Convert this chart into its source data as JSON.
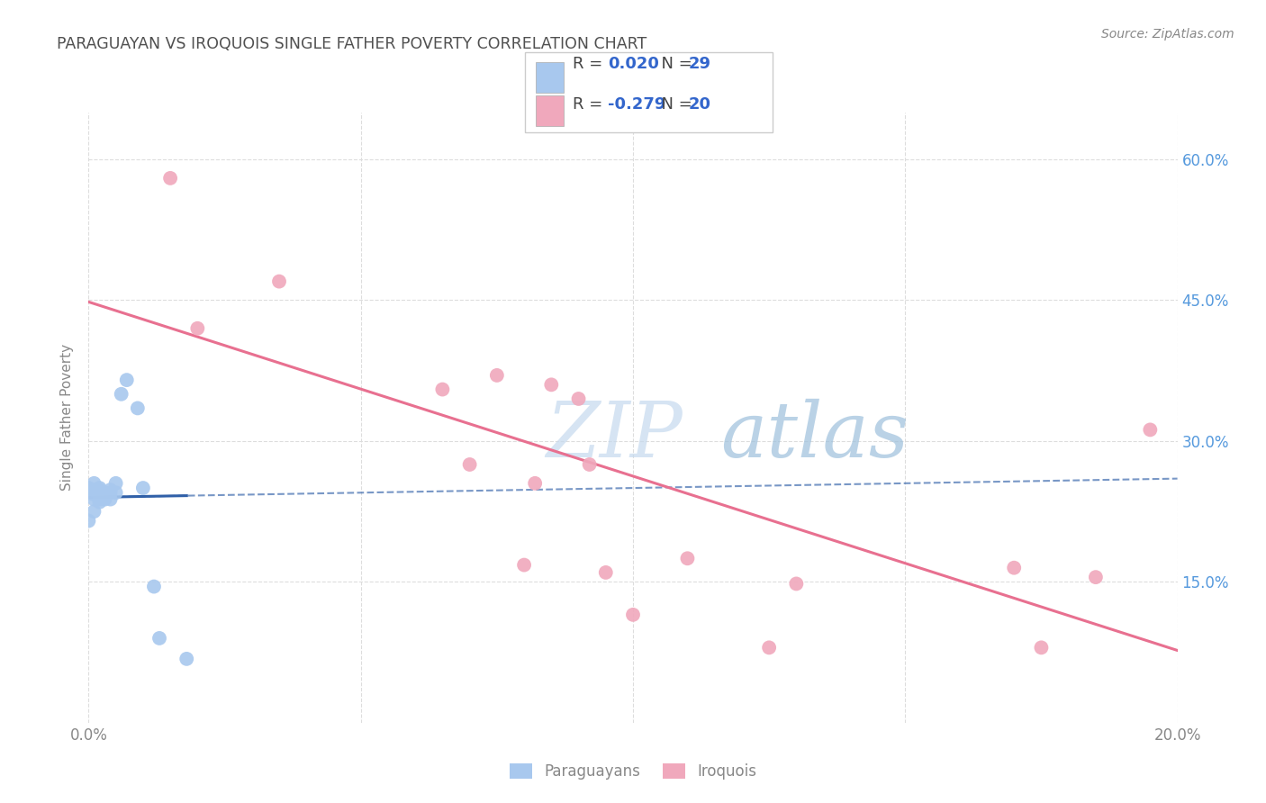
{
  "title": "PARAGUAYAN VS IROQUOIS SINGLE FATHER POVERTY CORRELATION CHART",
  "source": "Source: ZipAtlas.com",
  "xlabel_para": "Paraguayans",
  "xlabel_iro": "Iroquois",
  "axis_ylabel": "Single Father Poverty",
  "watermark_zip": "ZIP",
  "watermark_atlas": "atlas",
  "xlim": [
    0.0,
    0.2
  ],
  "ylim": [
    0.0,
    0.65
  ],
  "xticks": [
    0.0,
    0.05,
    0.1,
    0.15,
    0.2
  ],
  "yticks_right": [
    0.15,
    0.3,
    0.45,
    0.6
  ],
  "ytick_labels_right": [
    "15.0%",
    "30.0%",
    "45.0%",
    "60.0%"
  ],
  "paraguayan_R": "0.020",
  "paraguayan_N": "29",
  "iroquois_R": "-0.279",
  "iroquois_N": "20",
  "paraguayan_color": "#A8C8EE",
  "iroquois_color": "#F0A8BC",
  "paraguayan_line_color": "#3060A8",
  "iroquois_line_color": "#E87090",
  "background_color": "#FFFFFF",
  "grid_color": "#DDDDDD",
  "title_color": "#505050",
  "right_axis_color": "#5599DD",
  "legend_R_N_color": "#3366CC",
  "paraguayan_points_x": [
    0.0,
    0.0,
    0.001,
    0.001,
    0.001,
    0.001,
    0.001,
    0.002,
    0.002,
    0.002,
    0.002,
    0.002,
    0.002,
    0.003,
    0.003,
    0.003,
    0.003,
    0.004,
    0.004,
    0.004,
    0.005,
    0.005,
    0.006,
    0.007,
    0.009,
    0.01,
    0.012,
    0.013,
    0.018
  ],
  "paraguayan_points_y": [
    0.25,
    0.215,
    0.255,
    0.248,
    0.243,
    0.238,
    0.225,
    0.25,
    0.248,
    0.245,
    0.242,
    0.238,
    0.235,
    0.245,
    0.242,
    0.24,
    0.238,
    0.248,
    0.245,
    0.238,
    0.255,
    0.245,
    0.35,
    0.365,
    0.335,
    0.25,
    0.145,
    0.09,
    0.068
  ],
  "iroquois_points_x": [
    0.015,
    0.02,
    0.035,
    0.065,
    0.07,
    0.075,
    0.08,
    0.082,
    0.085,
    0.09,
    0.092,
    0.095,
    0.1,
    0.11,
    0.125,
    0.13,
    0.17,
    0.175,
    0.185,
    0.195
  ],
  "iroquois_points_y": [
    0.58,
    0.42,
    0.47,
    0.355,
    0.275,
    0.37,
    0.168,
    0.255,
    0.36,
    0.345,
    0.275,
    0.16,
    0.115,
    0.175,
    0.08,
    0.148,
    0.165,
    0.08,
    0.155,
    0.312
  ]
}
